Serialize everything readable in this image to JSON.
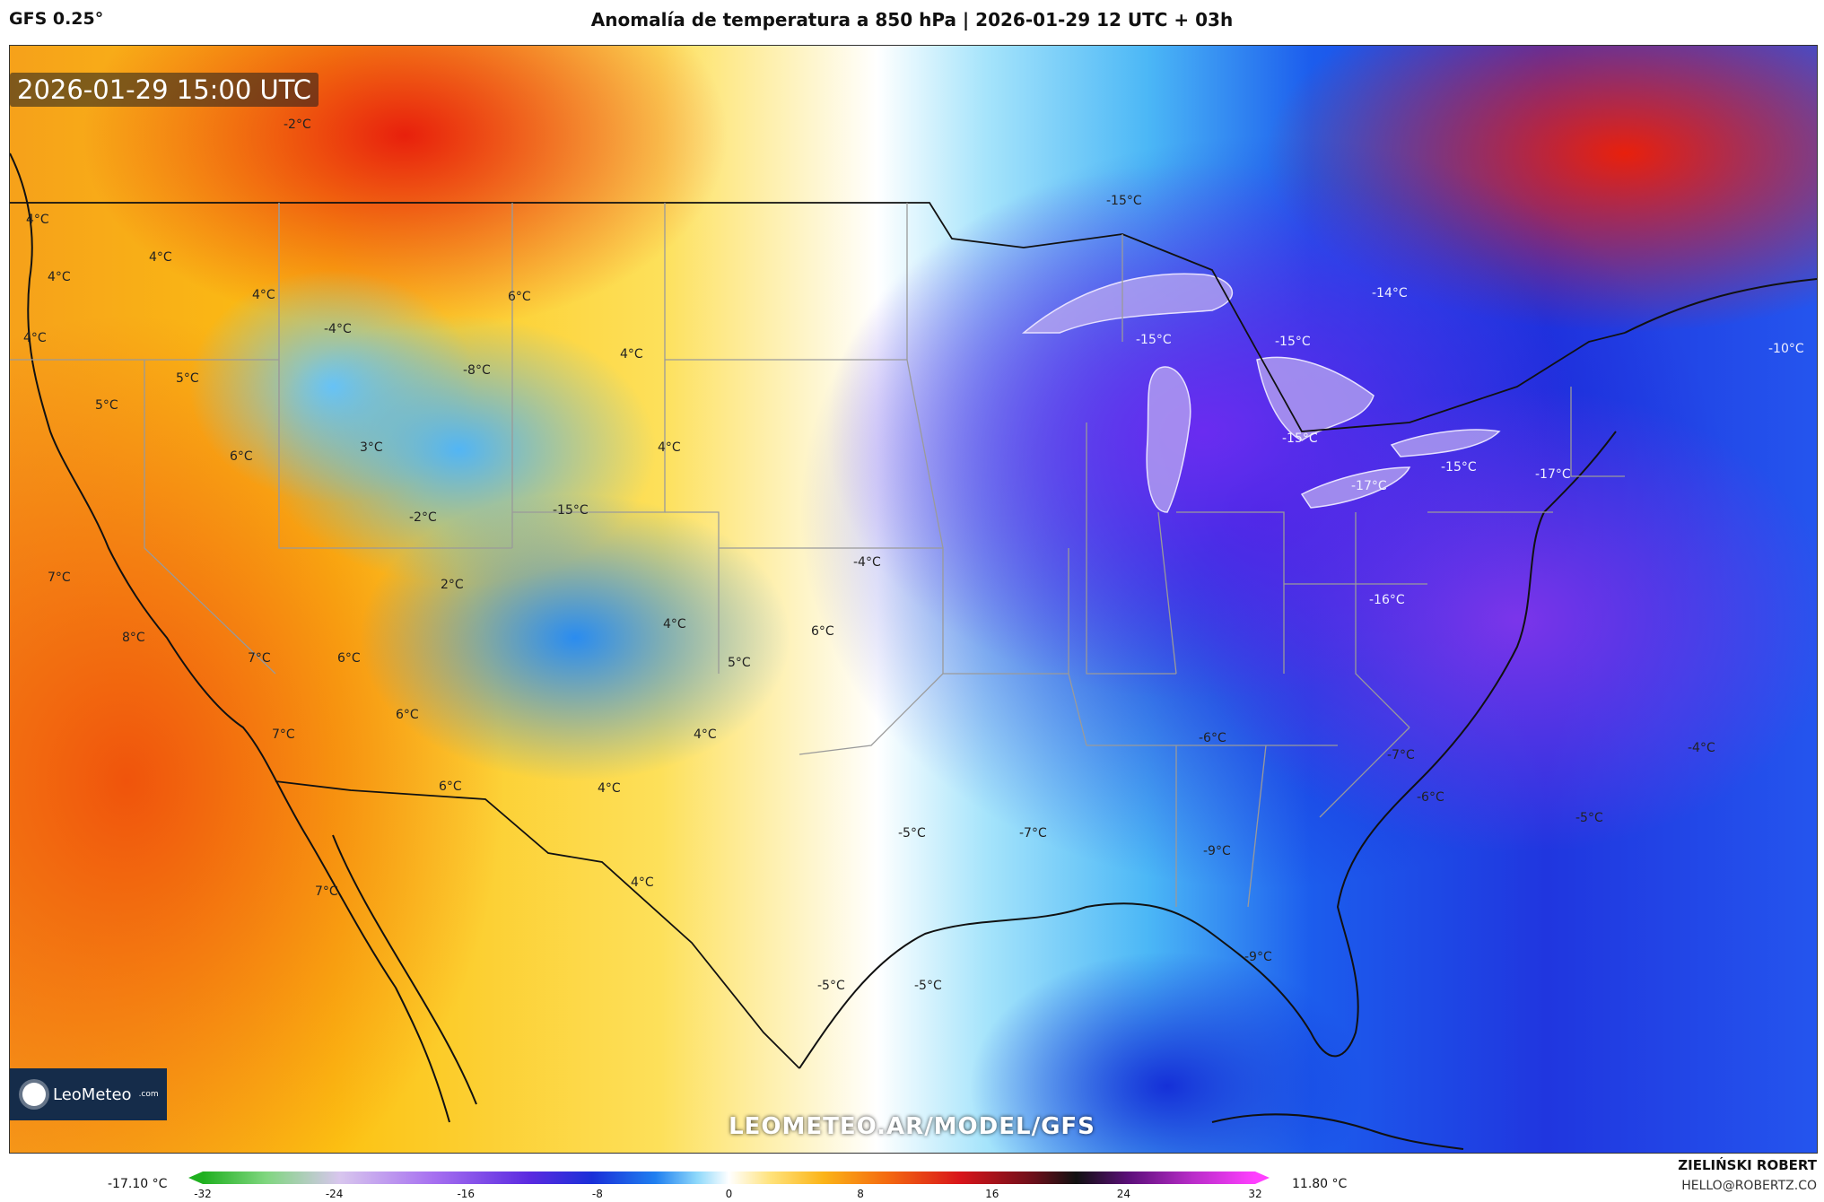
{
  "header": {
    "model": "GFS 0.25°",
    "title": "Anomalía de temperatura a 850 hPa | 2026-01-29 12 UTC + 03h"
  },
  "map": {
    "timestamp": "2026-01-29 15:00 UTC",
    "watermark": "LEOMETEO.AR/MODEL/GFS",
    "colors": {
      "cold_core": "#6a2cf0",
      "cold": "#1a1fd6",
      "neutral": "#ffffff",
      "warm": "#fcc212",
      "hot": "#e8200c"
    },
    "labels": [
      "-15°C",
      "-2°C",
      "4°C",
      "4°C",
      "4°C",
      "4°C",
      "4°C",
      "-4°C",
      "6°C",
      "-8°C",
      "4°C",
      "5°C",
      "5°C",
      "6°C",
      "3°C",
      "4°C",
      "-2°C",
      "-15°C",
      "7°C",
      "2°C",
      "-4°C",
      "8°C",
      "4°C",
      "6°C",
      "7°C",
      "6°C",
      "5°C",
      "6°C",
      "7°C",
      "4°C",
      "6°C",
      "4°C",
      "4°C",
      "7°C",
      "-15°C",
      "-14°C",
      "-15°C",
      "-15°C",
      "-15°C",
      "-10°C",
      "-17°C",
      "-17°C",
      "-16°C",
      "-6°C",
      "-7°C",
      "-6°C",
      "-4°C",
      "-5°C",
      "-5°C",
      "-7°C",
      "-9°C",
      "-5°C",
      "-5°C",
      "-9°C"
    ]
  },
  "logo": {
    "name": "LeoMeteo",
    "suffix": ".com",
    "icon": "sun-icon"
  },
  "colorbar": {
    "min_label": "-17.10 °C",
    "max_label": "11.80 °C",
    "ticks": [
      "-32",
      "-24",
      "-16",
      "-8",
      "0",
      "8",
      "16",
      "24",
      "32"
    ]
  },
  "credit": {
    "name": "ZIELIŃSKI ROBERT",
    "email": "HELLO@ROBERTZ.CO"
  }
}
